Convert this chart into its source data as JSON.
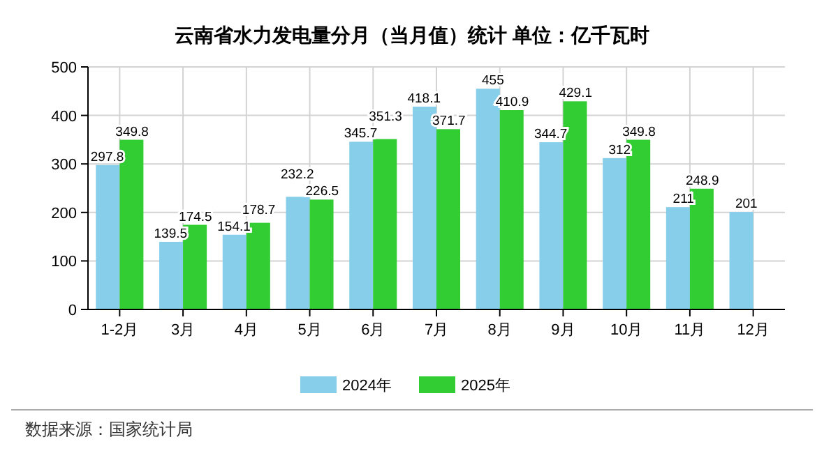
{
  "chart_data": {
    "type": "bar",
    "title": "云南省水力发电量分月（当月值）统计  单位：亿千瓦时",
    "categories": [
      "1-2月",
      "3月",
      "4月",
      "5月",
      "6月",
      "7月",
      "8月",
      "9月",
      "10月",
      "11月",
      "12月"
    ],
    "series": [
      {
        "name": "2024年",
        "color": "#87ceeb",
        "values": [
          297.8,
          139.5,
          154.1,
          232.2,
          345.7,
          418.1,
          455,
          344.7,
          312,
          211,
          201
        ]
      },
      {
        "name": "2025年",
        "color": "#32cd32",
        "values": [
          349.8,
          174.5,
          178.7,
          226.5,
          351.3,
          371.7,
          410.9,
          429.1,
          349.8,
          248.9,
          null
        ]
      }
    ],
    "ylim": [
      0,
      500
    ],
    "yticks": [
      0,
      100,
      200,
      300,
      400,
      500
    ],
    "grid": true,
    "legend": "bottom",
    "data_labels": true,
    "annotations": [
      "数据来源：国家统计局"
    ]
  }
}
